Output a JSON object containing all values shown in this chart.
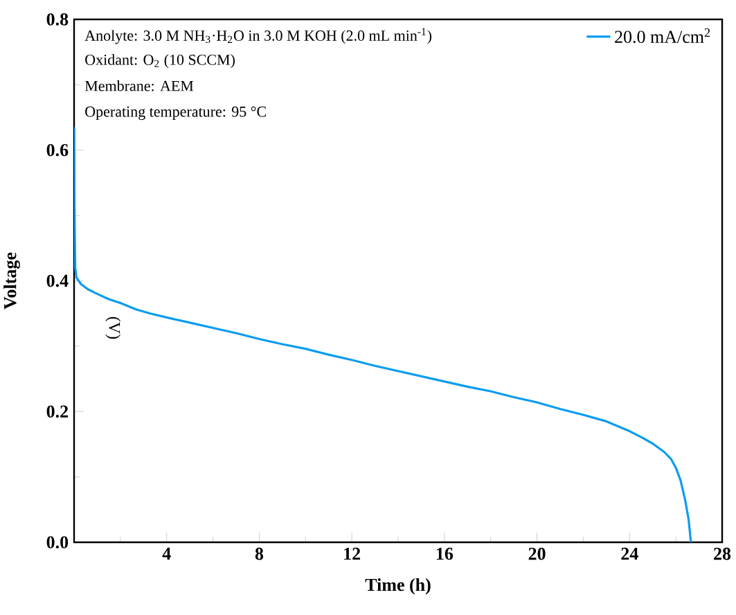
{
  "chart_data": {
    "type": "line",
    "xlabel": "Time (h)",
    "ylabel": "Voltage",
    "annotations": [
      "Anolyte: 3.0 M NH$_{3}$·H$_{2}$O in 3.0 M KOH (2.0 mL min$^{-1}$)",
      "Oxidant: O$_{2}$ (10 SCCM)",
      "Membrane: AEM",
      "Operating temperature: 95 °C",
      "(V)"
    ],
    "xlim": [
      0,
      28
    ],
    "ylim": [
      0,
      0.8
    ],
    "xticks": [
      {
        "value": 0,
        "label": null
      },
      4,
      8,
      12,
      16,
      20,
      24,
      28
    ],
    "yticks": [
      {
        "value": 0,
        "label": "0.0"
      },
      0.2,
      0.4,
      0.6,
      0.8
    ],
    "legend": "top right",
    "grid": false,
    "series": [
      {
        "name": "20.0 mA/cm$^{2}$",
        "color": "#0a9cf0",
        "x": [
          0,
          0.02,
          0.05,
          0.1,
          0.3,
          0.6,
          1,
          1.5,
          2,
          2.7,
          3.3,
          4,
          5,
          6,
          7,
          8,
          9,
          10,
          11,
          12,
          13,
          14,
          15,
          16,
          17,
          18,
          19,
          20,
          21,
          22,
          23,
          24,
          24.5,
          25,
          25.5,
          25.8,
          26,
          26.2,
          26.4,
          26.55,
          26.65
        ],
        "values": [
          0.635,
          0.5,
          0.42,
          0.405,
          0.395,
          0.387,
          0.38,
          0.372,
          0.366,
          0.356,
          0.35,
          0.344,
          0.336,
          0.328,
          0.32,
          0.311,
          0.303,
          0.296,
          0.287,
          0.279,
          0.27,
          0.262,
          0.254,
          0.246,
          0.238,
          0.231,
          0.222,
          0.214,
          0.204,
          0.195,
          0.185,
          0.17,
          0.161,
          0.151,
          0.138,
          0.127,
          0.114,
          0.095,
          0.065,
          0.035,
          0.0
        ]
      }
    ]
  }
}
